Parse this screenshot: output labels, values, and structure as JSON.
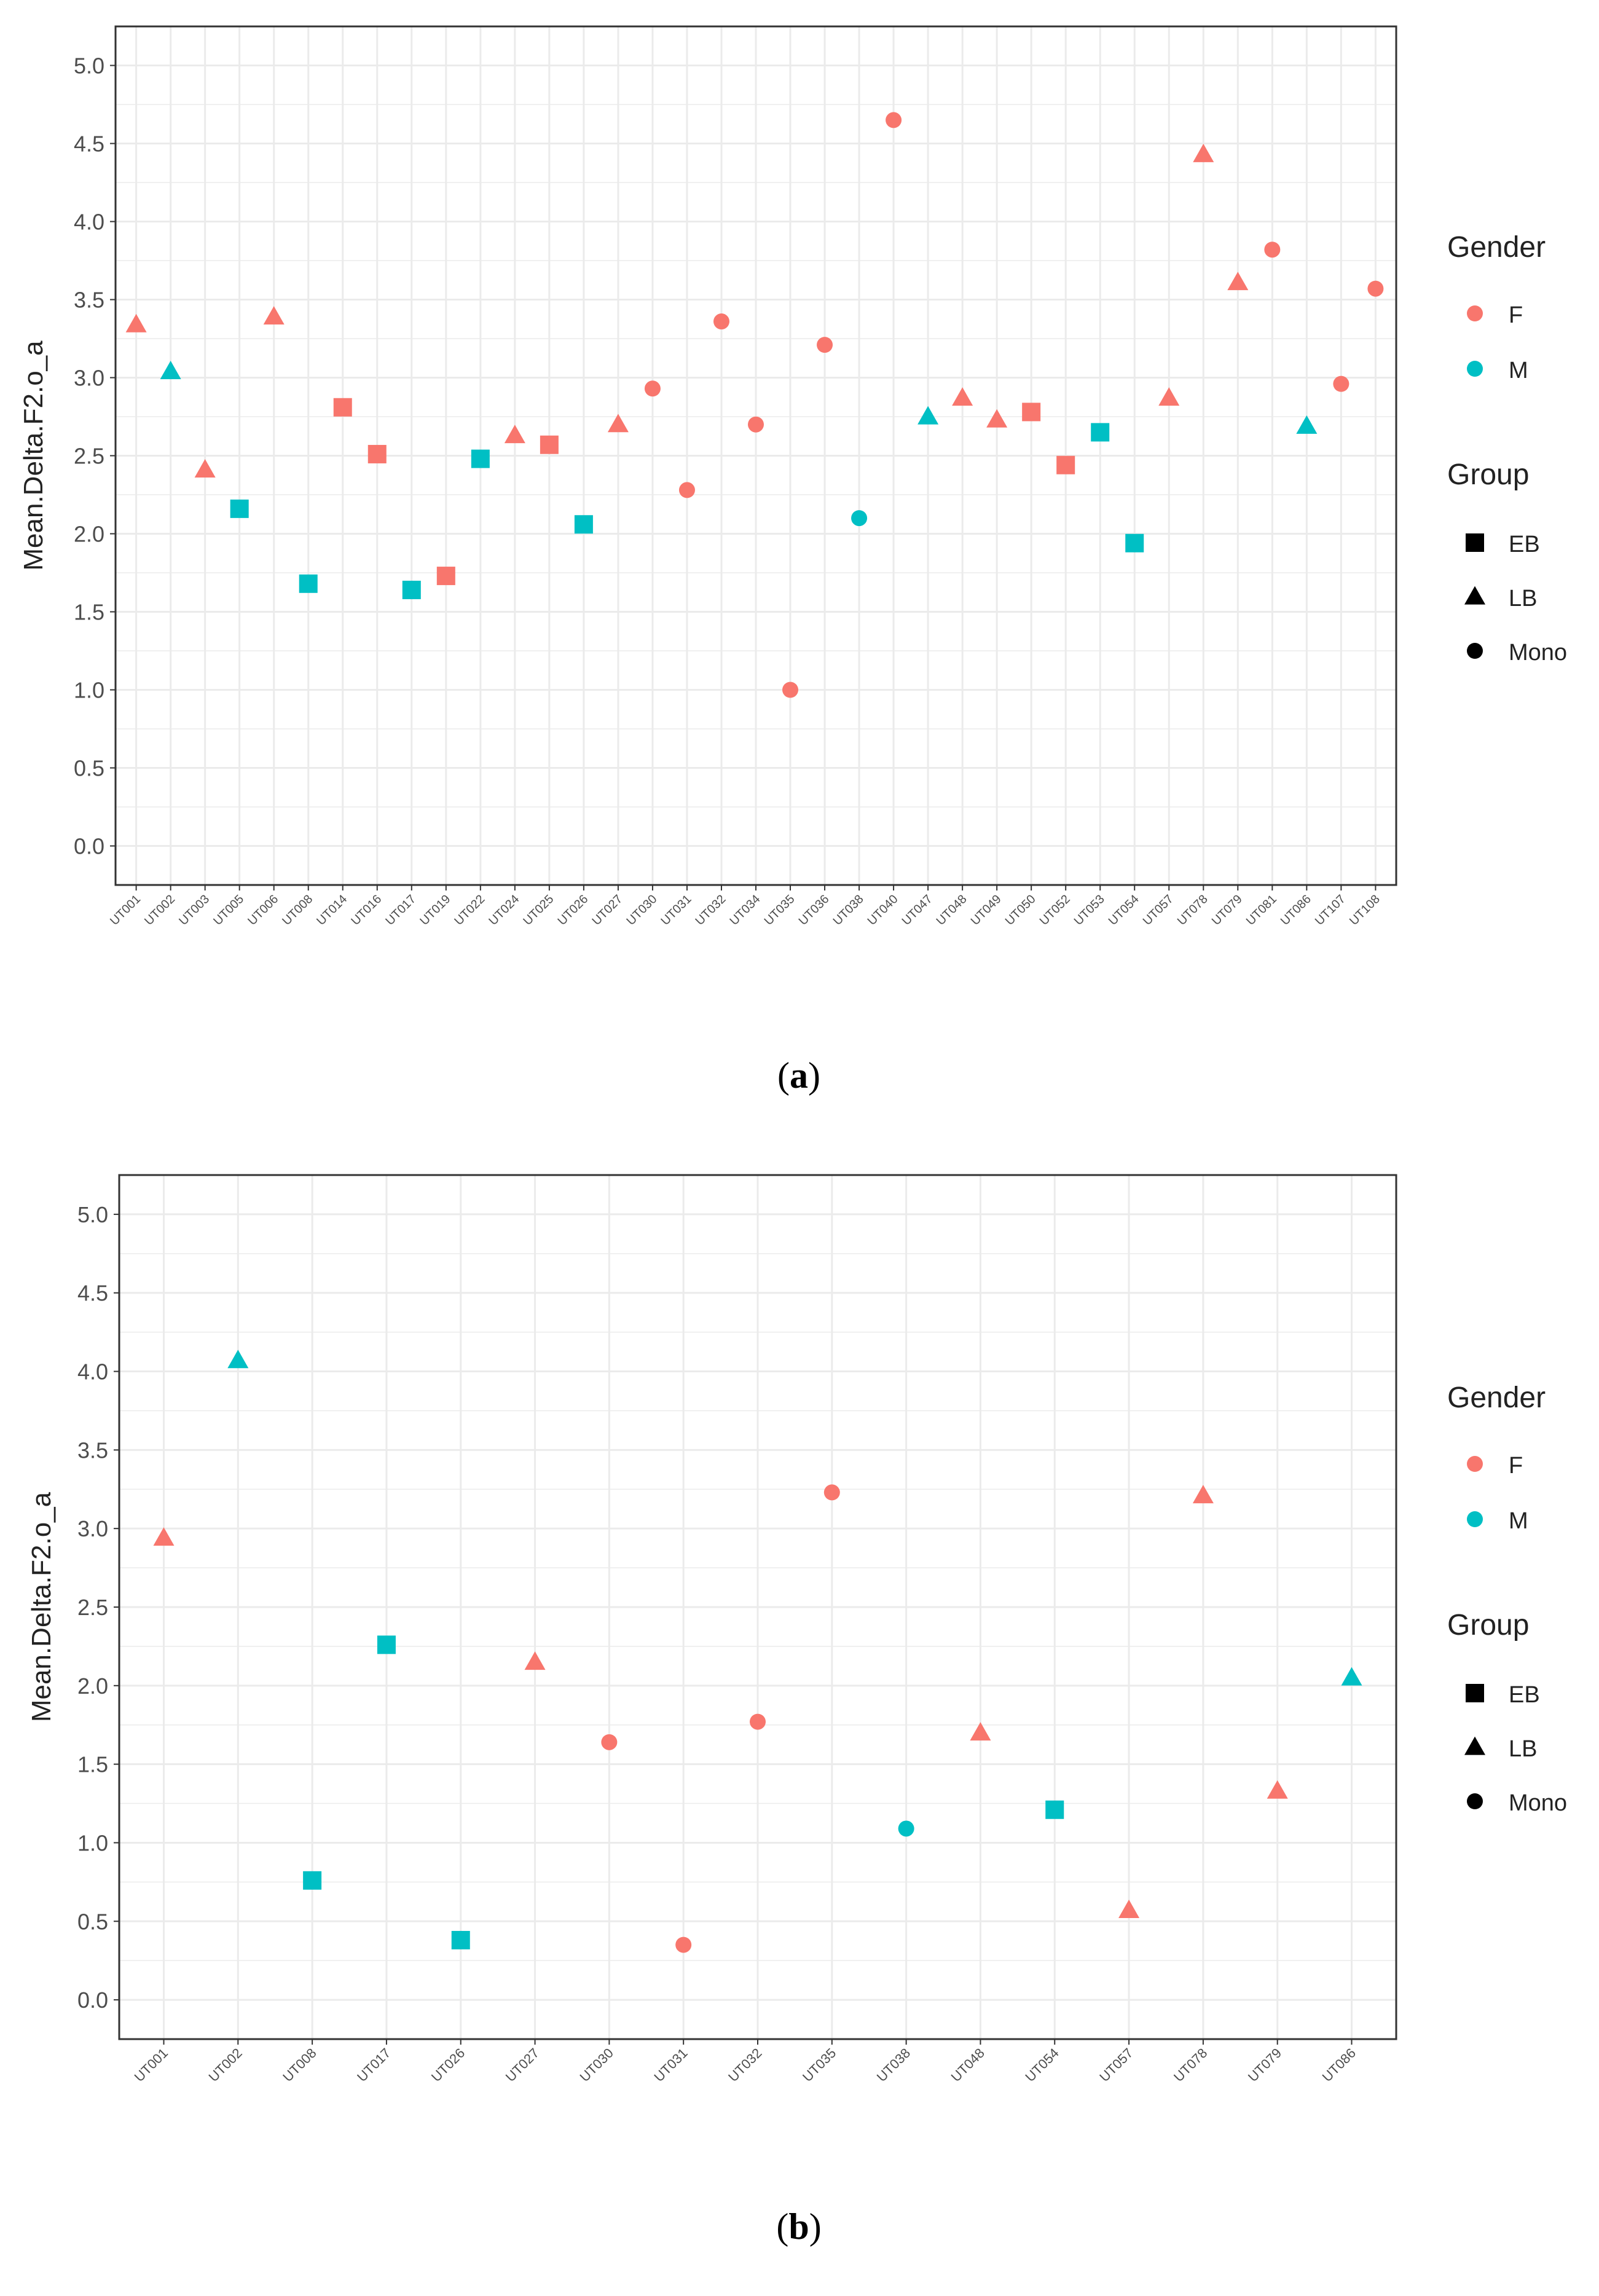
{
  "colors": {
    "F": "#F8766D",
    "M": "#00BFC4",
    "grid": "#EBEBEB",
    "axis": "#333333",
    "text": "#4D4D4D"
  },
  "legend": {
    "gender_title": "Gender",
    "gender_items": [
      {
        "key": "F",
        "label": "F"
      },
      {
        "key": "M",
        "label": "M"
      }
    ],
    "group_title": "Group",
    "group_items": [
      {
        "key": "EB",
        "label": "EB"
      },
      {
        "key": "LB",
        "label": "LB"
      },
      {
        "key": "Mono",
        "label": "Mono"
      }
    ]
  },
  "chart_data": [
    {
      "type": "scatter",
      "panel": "a",
      "caption_letter": "a",
      "ylabel": "Mean.Delta.F2.o_a",
      "xlabel": "",
      "ylim": [
        -0.25,
        5.25
      ],
      "yticks": [
        0.0,
        0.5,
        1.0,
        1.5,
        2.0,
        2.5,
        3.0,
        3.5,
        4.0,
        4.5,
        5.0
      ],
      "ytick_labels": [
        "0.0",
        "0.5",
        "1.0",
        "1.5",
        "2.0",
        "2.5",
        "3.0",
        "3.5",
        "4.0",
        "4.5",
        "5.0"
      ],
      "legend_position": "right",
      "points": [
        {
          "id": "UT001",
          "value": 3.34,
          "gender": "F",
          "group": "LB"
        },
        {
          "id": "UT002",
          "value": 3.04,
          "gender": "M",
          "group": "LB"
        },
        {
          "id": "UT003",
          "value": 2.41,
          "gender": "F",
          "group": "LB"
        },
        {
          "id": "UT005",
          "value": 2.16,
          "gender": "M",
          "group": "EB"
        },
        {
          "id": "UT006",
          "value": 3.39,
          "gender": "F",
          "group": "LB"
        },
        {
          "id": "UT008",
          "value": 1.68,
          "gender": "M",
          "group": "EB"
        },
        {
          "id": "UT014",
          "value": 2.81,
          "gender": "F",
          "group": "EB"
        },
        {
          "id": "UT016",
          "value": 2.51,
          "gender": "F",
          "group": "EB"
        },
        {
          "id": "UT017",
          "value": 1.64,
          "gender": "M",
          "group": "EB"
        },
        {
          "id": "UT019",
          "value": 1.73,
          "gender": "F",
          "group": "EB"
        },
        {
          "id": "UT022",
          "value": 2.48,
          "gender": "M",
          "group": "EB"
        },
        {
          "id": "UT024",
          "value": 2.63,
          "gender": "F",
          "group": "LB"
        },
        {
          "id": "UT025",
          "value": 2.57,
          "gender": "F",
          "group": "EB"
        },
        {
          "id": "UT026",
          "value": 2.06,
          "gender": "M",
          "group": "EB"
        },
        {
          "id": "UT027",
          "value": 2.7,
          "gender": "F",
          "group": "LB"
        },
        {
          "id": "UT030",
          "value": 2.93,
          "gender": "F",
          "group": "Mono"
        },
        {
          "id": "UT031",
          "value": 2.28,
          "gender": "F",
          "group": "Mono"
        },
        {
          "id": "UT032",
          "value": 3.36,
          "gender": "F",
          "group": "Mono"
        },
        {
          "id": "UT034",
          "value": 2.7,
          "gender": "F",
          "group": "Mono"
        },
        {
          "id": "UT035",
          "value": 1.0,
          "gender": "F",
          "group": "Mono"
        },
        {
          "id": "UT036",
          "value": 3.21,
          "gender": "F",
          "group": "Mono"
        },
        {
          "id": "UT038",
          "value": 2.1,
          "gender": "M",
          "group": "Mono"
        },
        {
          "id": "UT040",
          "value": 4.65,
          "gender": "F",
          "group": "Mono"
        },
        {
          "id": "UT047",
          "value": 2.75,
          "gender": "M",
          "group": "LB"
        },
        {
          "id": "UT048",
          "value": 2.87,
          "gender": "F",
          "group": "LB"
        },
        {
          "id": "UT049",
          "value": 2.73,
          "gender": "F",
          "group": "LB"
        },
        {
          "id": "UT050",
          "value": 2.78,
          "gender": "F",
          "group": "EB"
        },
        {
          "id": "UT052",
          "value": 2.44,
          "gender": "F",
          "group": "EB"
        },
        {
          "id": "UT053",
          "value": 2.65,
          "gender": "M",
          "group": "EB"
        },
        {
          "id": "UT054",
          "value": 1.94,
          "gender": "M",
          "group": "EB"
        },
        {
          "id": "UT057",
          "value": 2.87,
          "gender": "F",
          "group": "LB"
        },
        {
          "id": "UT078",
          "value": 4.43,
          "gender": "F",
          "group": "LB"
        },
        {
          "id": "UT079",
          "value": 3.61,
          "gender": "F",
          "group": "LB"
        },
        {
          "id": "UT081",
          "value": 3.82,
          "gender": "F",
          "group": "Mono"
        },
        {
          "id": "UT086",
          "value": 2.69,
          "gender": "M",
          "group": "LB"
        },
        {
          "id": "UT107",
          "value": 2.96,
          "gender": "F",
          "group": "Mono"
        },
        {
          "id": "UT108",
          "value": 3.57,
          "gender": "F",
          "group": "Mono"
        }
      ]
    },
    {
      "type": "scatter",
      "panel": "b",
      "caption_letter": "b",
      "ylabel": "Mean.Delta.F2.o_a",
      "xlabel": "",
      "ylim": [
        -0.25,
        5.25
      ],
      "yticks": [
        0.0,
        0.5,
        1.0,
        1.5,
        2.0,
        2.5,
        3.0,
        3.5,
        4.0,
        4.5,
        5.0
      ],
      "ytick_labels": [
        "0.0",
        "0.5",
        "1.0",
        "1.5",
        "2.0",
        "2.5",
        "3.0",
        "3.5",
        "4.0",
        "4.5",
        "5.0"
      ],
      "legend_position": "right",
      "points": [
        {
          "id": "UT001",
          "value": 2.94,
          "gender": "F",
          "group": "LB"
        },
        {
          "id": "UT002",
          "value": 4.07,
          "gender": "M",
          "group": "LB"
        },
        {
          "id": "UT008",
          "value": 0.76,
          "gender": "M",
          "group": "EB"
        },
        {
          "id": "UT017",
          "value": 2.26,
          "gender": "M",
          "group": "EB"
        },
        {
          "id": "UT026",
          "value": 0.38,
          "gender": "M",
          "group": "EB"
        },
        {
          "id": "UT027",
          "value": 2.15,
          "gender": "F",
          "group": "LB"
        },
        {
          "id": "UT030",
          "value": 1.64,
          "gender": "F",
          "group": "Mono"
        },
        {
          "id": "UT031",
          "value": 0.35,
          "gender": "F",
          "group": "Mono"
        },
        {
          "id": "UT032",
          "value": 1.77,
          "gender": "F",
          "group": "Mono"
        },
        {
          "id": "UT035",
          "value": 3.23,
          "gender": "F",
          "group": "Mono"
        },
        {
          "id": "UT038",
          "value": 1.09,
          "gender": "M",
          "group": "Mono"
        },
        {
          "id": "UT048",
          "value": 1.7,
          "gender": "F",
          "group": "LB"
        },
        {
          "id": "UT054",
          "value": 1.21,
          "gender": "M",
          "group": "EB"
        },
        {
          "id": "UT057",
          "value": 0.57,
          "gender": "F",
          "group": "LB"
        },
        {
          "id": "UT078",
          "value": 3.21,
          "gender": "F",
          "group": "LB"
        },
        {
          "id": "UT079",
          "value": 1.33,
          "gender": "F",
          "group": "LB"
        },
        {
          "id": "UT086",
          "value": 2.05,
          "gender": "M",
          "group": "LB"
        }
      ]
    }
  ]
}
